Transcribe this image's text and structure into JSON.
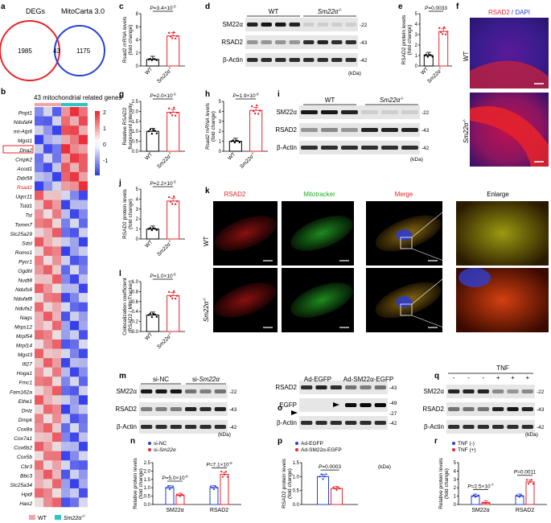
{
  "colors": {
    "red": "#e8232a",
    "blue": "#2442d6",
    "wt_bar": "#000000",
    "ko_bar": "#e8232a",
    "heat_hi": "#e8232a",
    "heat_lo": "#2b3fd1",
    "wt_legend": "#f2a5a5",
    "ko_legend": "#2cc4c9"
  },
  "panel_a": {
    "label": "a",
    "left_title": "DEGs",
    "right_title": "MitoCarta 3.0",
    "left_only": "1985",
    "overlap": "43",
    "right_only": "1175"
  },
  "panel_b": {
    "label": "b",
    "title": "43 mitochondrial related genes",
    "genes": [
      "Pnpt1",
      "Ndufaf4",
      "mt-Atp6",
      "Mgst1",
      "Dna2",
      "Cmpk2",
      "Acod1",
      "Ddx58",
      "Rsad2",
      "Uqcr11",
      "Tstd1",
      "Tst",
      "Tomm7",
      "Slc25a29",
      "Sdsl",
      "Romo1",
      "Pycr1",
      "Ogdhl",
      "Nudt8",
      "Ndufs6",
      "Ndufaf8",
      "Ndufa2",
      "Nags",
      "Mrps12",
      "Mrpl54",
      "Mrpl14",
      "Mgst3",
      "Ifi27",
      "Hoga1",
      "Fmc1",
      "Fam162a",
      "Ethe1",
      "Dnlz",
      "Dmpk",
      "Cox8a",
      "Cox7a1",
      "Cox6b2",
      "Cox5b",
      "Cbr3",
      "Bbc3",
      "Slc25a34",
      "Hpdl",
      "Hao2"
    ],
    "highlight": "Rsad2",
    "scale_ticks": [
      "2",
      "1",
      "0",
      "-1"
    ],
    "legend": {
      "wt": "WT",
      "ko": "Sm22α"
    },
    "ko_sup": "-/-"
  },
  "genotype": {
    "wt": "WT",
    "ko": "Sm22α",
    "ko_sup": "-/-"
  },
  "panel_c": {
    "label": "c",
    "ylabel": "Rsad2 mRNA levels",
    "ylabel2": "(fold change)",
    "p": "P=3.4×10",
    "p_exp": "-5",
    "ticks": [
      "0",
      "2",
      "4",
      "6",
      "8"
    ]
  },
  "panel_d": {
    "label": "d",
    "rows": [
      "SM22α",
      "RSAD2",
      "β-Actin"
    ],
    "mw": [
      "-22",
      "-43",
      "-42"
    ],
    "unit": "(kDa)"
  },
  "panel_e": {
    "label": "e",
    "ylabel": "RSAD2 protein levels",
    "ylabel2": "(fold change)",
    "p": "P=0.0033",
    "ticks": [
      "0",
      "1",
      "2",
      "3",
      "4",
      "5"
    ]
  },
  "panel_f": {
    "label": "f",
    "title_a": "RSAD2",
    "title_b": "DAPI"
  },
  "panel_g": {
    "label": "g",
    "ylabel": "Relative RSAD2",
    "ylabel2": "fluorescent intensity",
    "p": "P=2.0×10",
    "p_exp": "-6",
    "ticks": [
      "0.0",
      "0.5",
      "1.0",
      "1.5",
      "2.0",
      "2.5"
    ]
  },
  "panel_h": {
    "label": "h",
    "ylabel": "Rsad2 mRNA levels",
    "ylabel2": "(fold change)",
    "p": "P=1.9×10",
    "p_exp": "-8",
    "ticks": [
      "0",
      "1",
      "2",
      "3",
      "4",
      "5"
    ]
  },
  "panel_i": {
    "label": "i",
    "rows": [
      "SM22α",
      "RSAD2",
      "β-Actin"
    ],
    "mw": [
      "-22",
      "-43",
      "-42"
    ],
    "unit": "(kDa)"
  },
  "panel_j": {
    "label": "j",
    "ylabel": "RSAD2 protein levels",
    "ylabel2": "(fold change)",
    "p": "P=2.2×10",
    "p_exp": "-5",
    "ticks": [
      "0",
      "1",
      "2",
      "3",
      "4",
      "5"
    ]
  },
  "panel_k": {
    "label": "k",
    "cols": [
      "RSAD2",
      "Mitotracker",
      "Merge",
      "Enlarge"
    ]
  },
  "panel_l": {
    "label": "l",
    "ylabel": "Colocalization coefficient",
    "ylabel2": "(RSAD2 / MitoTracker)",
    "p": "P=1.0×10",
    "p_exp": "-6",
    "ticks": [
      "0.0",
      "0.2",
      "0.4",
      "0.6",
      "0.8",
      "1.0"
    ]
  },
  "panel_m": {
    "label": "m",
    "groups": [
      "si-NC",
      "si-Sm22α"
    ],
    "rows": [
      "SM22α",
      "RSAD2",
      "β-Actin"
    ],
    "mw": [
      "-22",
      "-43",
      "-42"
    ],
    "unit": "(kDa)"
  },
  "panel_n": {
    "label": "n",
    "legend": [
      "si-NC",
      "si-Sm22α"
    ],
    "ylabel": "Relative protein levels",
    "ylabel2": "(fold change)",
    "p1": "P=5.0×10",
    "p1_exp": "-6",
    "p2": "P=7.1×10",
    "p2_exp": "-5",
    "cats": [
      "SM22α",
      "RSAD2"
    ],
    "ticks": [
      "0.0",
      "0.5",
      "1.0",
      "1.5",
      "2.0",
      "2.5"
    ]
  },
  "panel_o": {
    "label": "o",
    "groups": [
      "Ad-EGFP",
      "Ad-SM22α-EGFP"
    ],
    "rows": [
      "RSAD2",
      "EGFP",
      "β-Actin"
    ],
    "mw": [
      "-43",
      "-49",
      "-27",
      "-42"
    ],
    "unit": "(kDa)"
  },
  "panel_p": {
    "label": "p",
    "legend": [
      "Ad-EGFP",
      "Ad-SM22α-EGFP"
    ],
    "ylabel": "RSAD2 protein levels",
    "ylabel2": "(fold change)",
    "p": "P=0.0003",
    "ticks": [
      "0.0",
      "0.5",
      "1.0",
      "1.5"
    ]
  },
  "panel_q": {
    "label": "q",
    "tnf": "TNF",
    "signs": [
      "-",
      "-",
      "-",
      "+",
      "+",
      "+"
    ],
    "rows": [
      "SM22α",
      "RSAD2",
      "β-Actin"
    ],
    "mw": [
      "-22",
      "-43",
      "-42"
    ],
    "unit": "(kDa)"
  },
  "panel_r": {
    "label": "r",
    "legend": [
      "TNF (-)",
      "TNF (+)"
    ],
    "ylabel": "Relative protein levels",
    "ylabel2": "(fold change)",
    "p1": "P=2.5×10",
    "p1_exp": "-7",
    "p2": "P=0.0011",
    "cats": [
      "SM22α",
      "RSAD2"
    ],
    "ticks": [
      "0",
      "1",
      "2",
      "3",
      "4",
      "5"
    ]
  },
  "chart_data": [
    {
      "id": "c",
      "type": "bar",
      "categories": [
        "WT",
        "Sm22α-/-"
      ],
      "values": [
        1.0,
        4.6
      ],
      "ylabel": "Rsad2 mRNA levels (fold change)",
      "ylim": [
        0,
        8
      ]
    },
    {
      "id": "e",
      "type": "bar",
      "categories": [
        "WT",
        "Sm22α-/-"
      ],
      "values": [
        1.0,
        3.3
      ],
      "ylabel": "RSAD2 protein levels (fold change)",
      "ylim": [
        0,
        5
      ]
    },
    {
      "id": "g",
      "type": "bar",
      "categories": [
        "WT",
        "Sm22α-/-"
      ],
      "values": [
        1.0,
        1.95
      ],
      "ylabel": "Relative RSAD2 fluorescent intensity",
      "ylim": [
        0,
        2.5
      ]
    },
    {
      "id": "h",
      "type": "bar",
      "categories": [
        "WT",
        "Sm22α-/-"
      ],
      "values": [
        1.0,
        4.1
      ],
      "ylabel": "Rsad2 mRNA levels (fold change)",
      "ylim": [
        0,
        5
      ]
    },
    {
      "id": "j",
      "type": "bar",
      "categories": [
        "WT",
        "Sm22α-/-"
      ],
      "values": [
        1.0,
        3.8
      ],
      "ylabel": "RSAD2 protein levels (fold change)",
      "ylim": [
        0,
        5
      ]
    },
    {
      "id": "l",
      "type": "bar",
      "categories": [
        "WT",
        "Sm22α-/-"
      ],
      "values": [
        0.33,
        0.72
      ],
      "ylabel": "Colocalization coefficient (RSAD2 / MitoTracker)",
      "ylim": [
        0,
        1.0
      ]
    },
    {
      "id": "n",
      "type": "bar",
      "categories": [
        "SM22α",
        "RSAD2"
      ],
      "series": [
        {
          "name": "si-NC",
          "values": [
            1.0,
            1.0
          ]
        },
        {
          "name": "si-Sm22α",
          "values": [
            0.55,
            1.8
          ]
        }
      ],
      "ylim": [
        0,
        2.5
      ]
    },
    {
      "id": "p",
      "type": "bar",
      "categories": [
        "Ad-EGFP",
        "Ad-SM22α-EGFP"
      ],
      "values": [
        1.0,
        0.57
      ],
      "ylim": [
        0,
        1.5
      ]
    },
    {
      "id": "r",
      "type": "bar",
      "categories": [
        "SM22α",
        "RSAD2"
      ],
      "series": [
        {
          "name": "TNF (-)",
          "values": [
            1.0,
            1.0
          ]
        },
        {
          "name": "TNF (+)",
          "values": [
            0.2,
            2.7
          ]
        }
      ],
      "ylim": [
        0,
        5
      ]
    }
  ]
}
